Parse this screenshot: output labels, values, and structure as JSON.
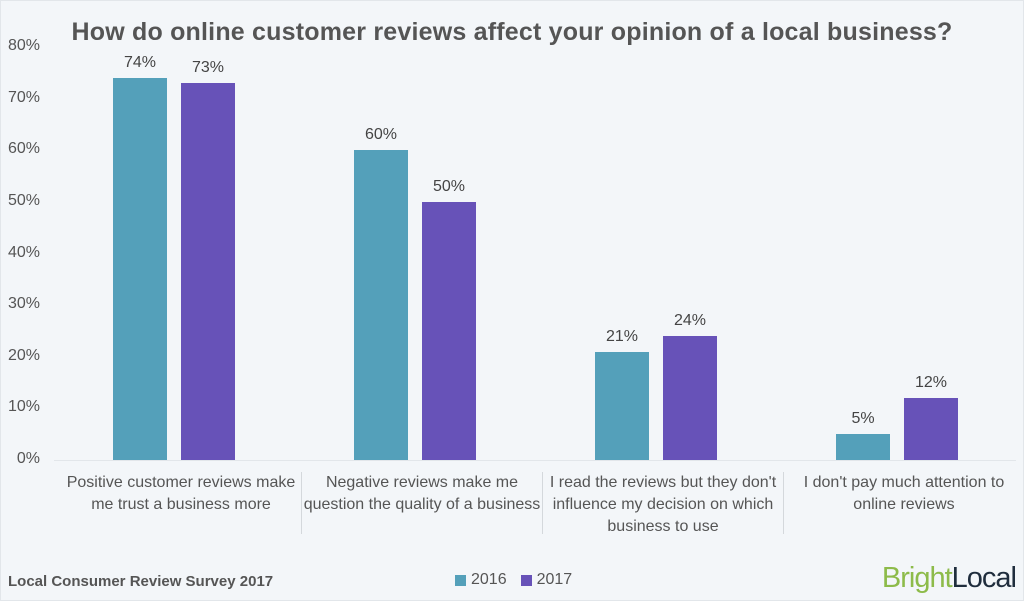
{
  "chart_data": {
    "type": "bar",
    "title": "How do online customer reviews affect your opinion of a local business?",
    "xlabel": "",
    "ylabel": "",
    "ylim": [
      0,
      80
    ],
    "yticks": [
      "0%",
      "10%",
      "20%",
      "30%",
      "40%",
      "50%",
      "60%",
      "70%",
      "80%"
    ],
    "grid": false,
    "legend_position": "bottom",
    "categories": [
      "Positive customer reviews make me trust a business more",
      "Negative reviews make me question the quality of a business",
      "I read the reviews but they don't influence my decision on which business to use",
      "I don't pay much attention to online reviews"
    ],
    "series": [
      {
        "name": "2016",
        "color": "#54a0ba",
        "values": [
          74,
          60,
          21,
          5
        ],
        "labels": [
          "74%",
          "60%",
          "21%",
          "5%"
        ]
      },
      {
        "name": "2017",
        "color": "#6752b8",
        "values": [
          73,
          50,
          24,
          12
        ],
        "labels": [
          "73%",
          "50%",
          "24%",
          "12%"
        ]
      }
    ]
  },
  "footer": {
    "source": "Local Consumer Review Survey 2017",
    "logo_bright": "Bright",
    "logo_local": "Local"
  }
}
